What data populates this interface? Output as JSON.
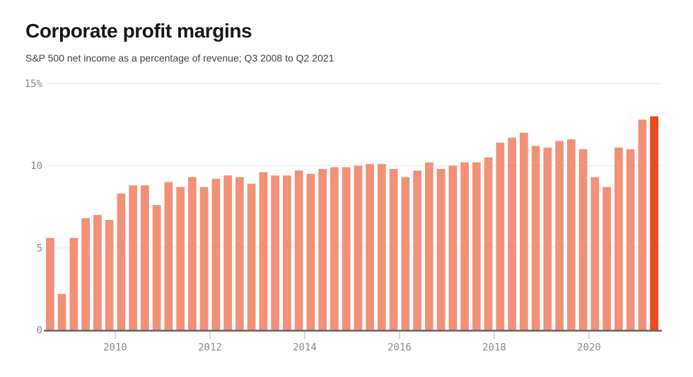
{
  "header": {
    "title": "Corporate profit margins",
    "subtitle": "S&P 500 net income as a percentage of revenue; Q3 2008 to Q2 2021"
  },
  "colors": {
    "bar": "#F29178",
    "bar_highlight": "#E84D1C",
    "grid": "#E8E8E8",
    "axis_line": "#666666",
    "tick": "#CCCCCC",
    "axis_label": "#8C8C90",
    "title": "#18181B",
    "subtitle": "#414146"
  },
  "chart_data": {
    "type": "bar",
    "title": "Corporate profit margins",
    "subtitle": "S&P 500 net income as a percentage of revenue; Q3 2008 to Q2 2021",
    "unit": "%",
    "ylim": [
      0,
      15
    ],
    "grid": true,
    "legend": false,
    "highlight_index": 51,
    "yticks": [
      {
        "value": 0,
        "label": "0"
      },
      {
        "value": 5,
        "label": "5"
      },
      {
        "value": 10,
        "label": "10"
      },
      {
        "value": 15,
        "label": "15%"
      }
    ],
    "xticks": [
      {
        "label": "2010",
        "at_index": 6
      },
      {
        "label": "2012",
        "at_index": 14
      },
      {
        "label": "2014",
        "at_index": 22
      },
      {
        "label": "2016",
        "at_index": 30
      },
      {
        "label": "2018",
        "at_index": 38
      },
      {
        "label": "2020",
        "at_index": 46
      }
    ],
    "x": [
      "2008 Q3",
      "2008 Q4",
      "2009 Q1",
      "2009 Q2",
      "2009 Q3",
      "2009 Q4",
      "2010 Q1",
      "2010 Q2",
      "2010 Q3",
      "2010 Q4",
      "2011 Q1",
      "2011 Q2",
      "2011 Q3",
      "2011 Q4",
      "2012 Q1",
      "2012 Q2",
      "2012 Q3",
      "2012 Q4",
      "2013 Q1",
      "2013 Q2",
      "2013 Q3",
      "2013 Q4",
      "2014 Q1",
      "2014 Q2",
      "2014 Q3",
      "2014 Q4",
      "2015 Q1",
      "2015 Q2",
      "2015 Q3",
      "2015 Q4",
      "2016 Q1",
      "2016 Q2",
      "2016 Q3",
      "2016 Q4",
      "2017 Q1",
      "2017 Q2",
      "2017 Q3",
      "2017 Q4",
      "2018 Q1",
      "2018 Q2",
      "2018 Q3",
      "2018 Q4",
      "2019 Q1",
      "2019 Q2",
      "2019 Q3",
      "2019 Q4",
      "2020 Q1",
      "2020 Q2",
      "2020 Q3",
      "2020 Q4",
      "2021 Q1",
      "2021 Q2"
    ],
    "values": [
      5.6,
      2.2,
      5.6,
      6.8,
      7.0,
      6.7,
      8.3,
      8.8,
      8.8,
      7.6,
      9.0,
      8.7,
      9.3,
      8.7,
      9.2,
      9.4,
      9.3,
      8.9,
      9.6,
      9.4,
      9.4,
      9.7,
      9.5,
      9.8,
      9.9,
      9.9,
      10.0,
      10.1,
      10.1,
      9.8,
      9.3,
      9.7,
      10.2,
      9.8,
      10.0,
      10.2,
      10.2,
      10.5,
      11.4,
      11.7,
      12.0,
      11.2,
      11.1,
      11.5,
      11.6,
      11.0,
      9.3,
      8.7,
      11.1,
      11.0,
      12.8,
      13.0
    ]
  }
}
